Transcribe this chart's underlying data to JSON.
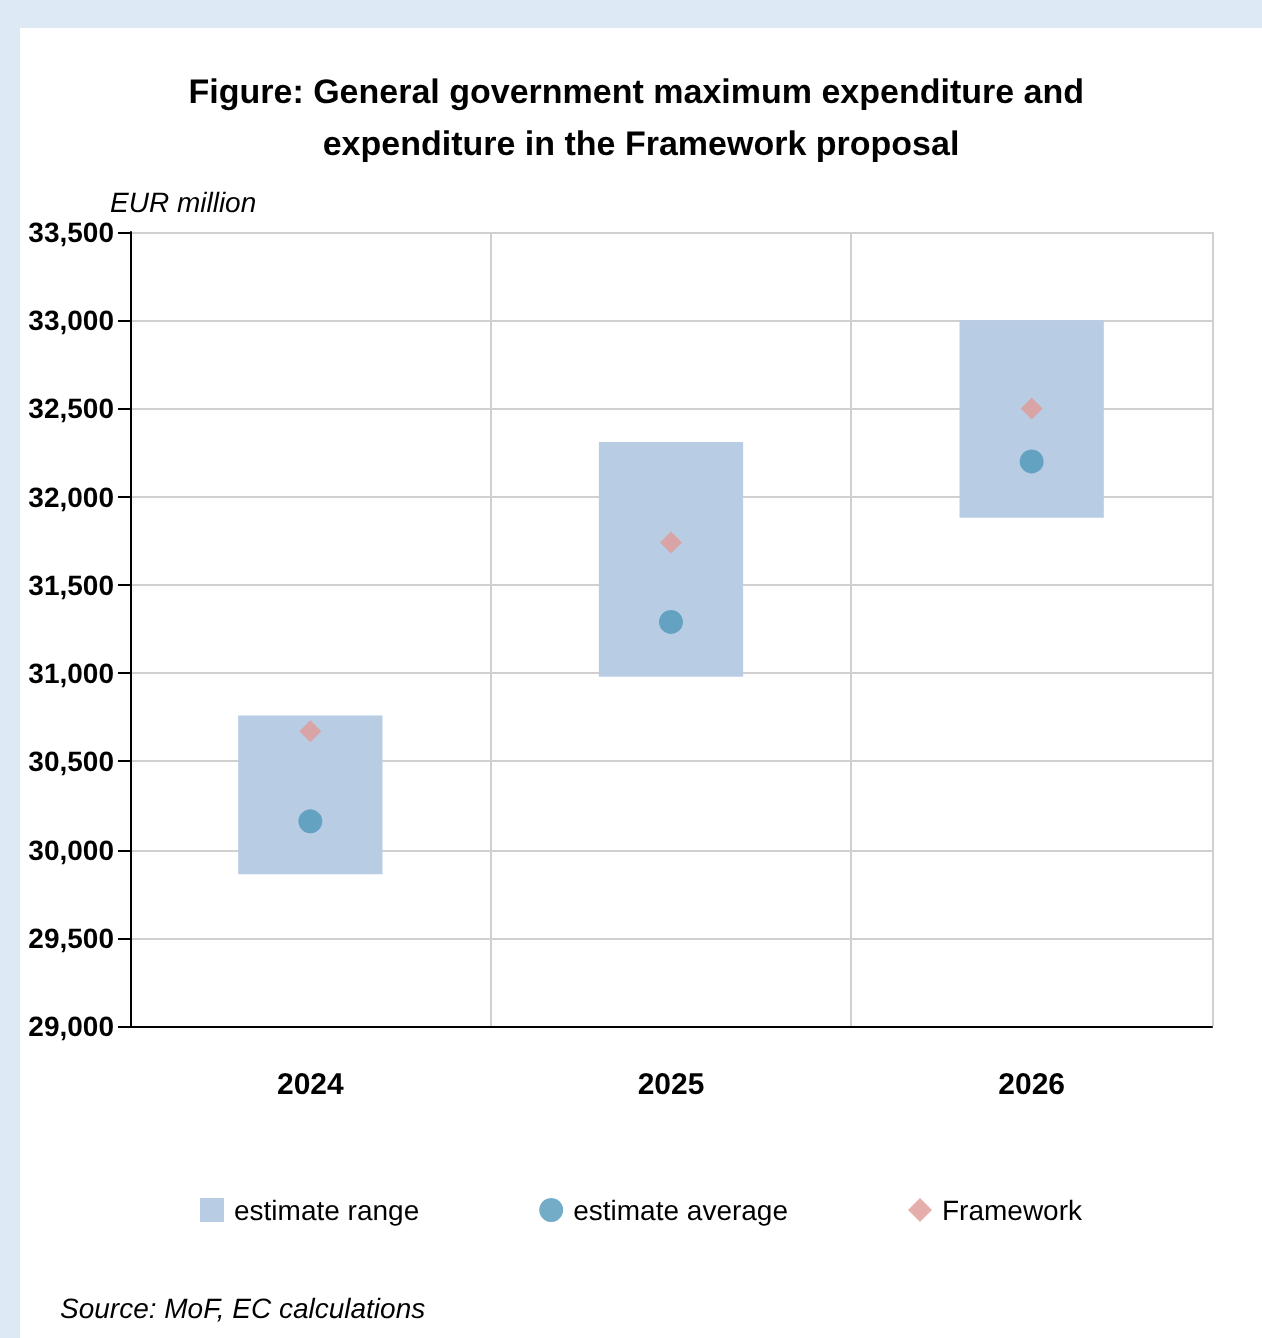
{
  "chart_data": {
    "type": "bar",
    "title": "Figure: General government maximum expenditure and expenditure in the Framework proposal",
    "ylabel": "EUR million",
    "categories": [
      "2024",
      "2025",
      "2026"
    ],
    "series": [
      {
        "name": "estimate range",
        "color": "#b8cce4",
        "base": [
          29860,
          30980,
          31880
        ],
        "values": [
          900,
          1330,
          1120
        ]
      },
      {
        "name": "estimate average",
        "type": "scatter",
        "color": "#4f97b8",
        "marker": "circle",
        "values": [
          30160,
          31290,
          32200
        ]
      },
      {
        "name": "Framework",
        "type": "scatter",
        "color": "#e09a96",
        "marker": "diamond",
        "values": [
          30670,
          31740,
          32500
        ]
      }
    ],
    "ylim": [
      29000,
      33500
    ],
    "yticks": [
      {
        "value": 29000,
        "label": "29,000"
      },
      {
        "value": 29500,
        "label": "29,500"
      },
      {
        "value": 30000,
        "label": "30,000"
      },
      {
        "value": 30500,
        "label": "30,500"
      },
      {
        "value": 31000,
        "label": "31,000"
      },
      {
        "value": 31500,
        "label": "31,500"
      },
      {
        "value": 32000,
        "label": "32,000"
      },
      {
        "value": 32500,
        "label": "32,500"
      },
      {
        "value": 33000,
        "label": "33,000"
      },
      {
        "value": 33500,
        "label": "33,500"
      }
    ],
    "grid": true,
    "legend": "bottom",
    "annotations": [
      "Source: MoF, EC calculations"
    ]
  }
}
